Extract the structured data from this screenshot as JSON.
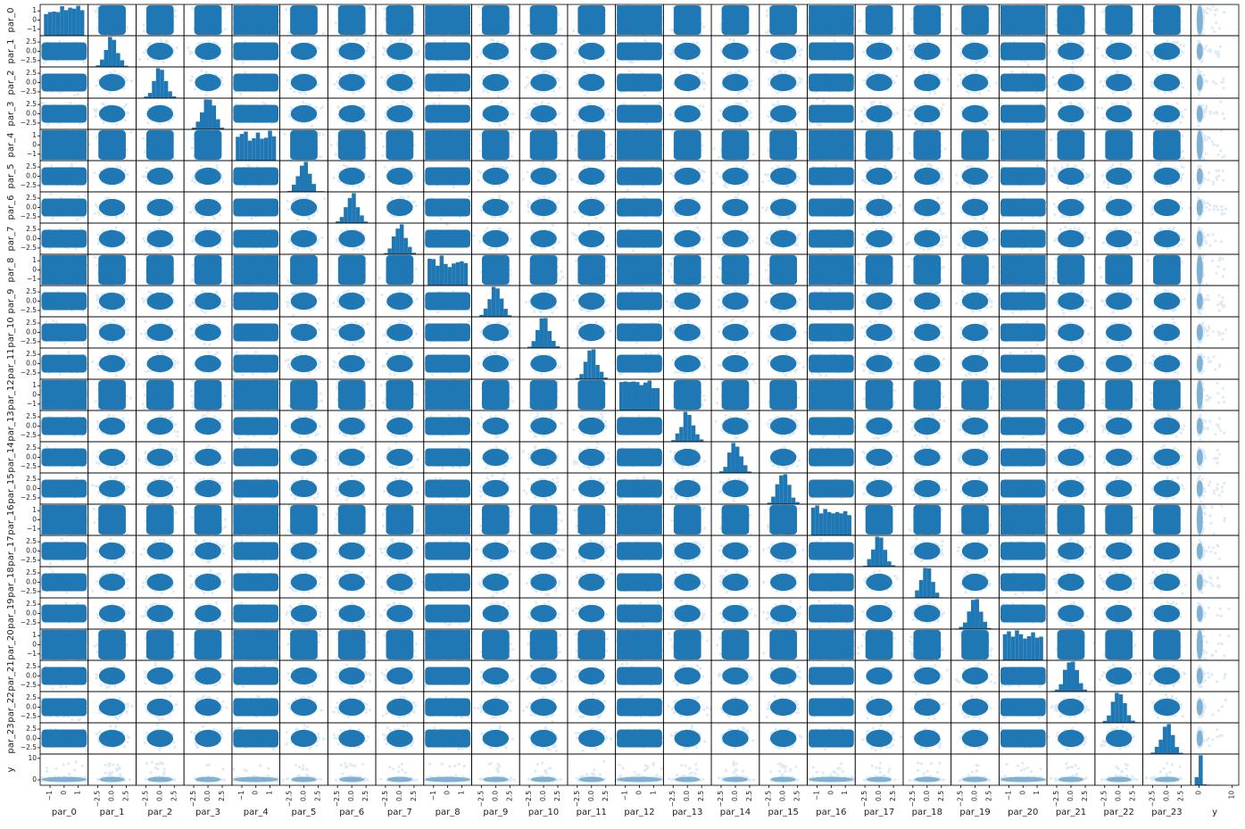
{
  "chart_data": {
    "type": "scatter_matrix",
    "variables": [
      "par_0",
      "par_1",
      "par_2",
      "par_3",
      "par_4",
      "par_5",
      "par_6",
      "par_7",
      "par_8",
      "par_9",
      "par_10",
      "par_11",
      "par_12",
      "par_13",
      "par_14",
      "par_15",
      "par_16",
      "par_17",
      "par_18",
      "par_19",
      "par_20",
      "par_21",
      "par_22",
      "par_23",
      "y"
    ],
    "uniform_variables": [
      "par_0",
      "par_4",
      "par_8",
      "par_12",
      "par_16",
      "par_20"
    ],
    "normal_variables": [
      "par_1",
      "par_2",
      "par_3",
      "par_5",
      "par_6",
      "par_7",
      "par_9",
      "par_10",
      "par_11",
      "par_13",
      "par_14",
      "par_15",
      "par_17",
      "par_18",
      "par_19",
      "par_21",
      "par_22",
      "par_23"
    ],
    "axis_ranges": {
      "uniform": [
        -1.7,
        1.7
      ],
      "normal": [
        -4.2,
        4.2
      ],
      "y": [
        -2.5,
        12
      ]
    },
    "tick_labels": {
      "uniform_x": [
        "−1",
        "0",
        "1"
      ],
      "uniform_y": [
        "1",
        "0",
        "−1"
      ],
      "normal_x": [
        "−2.5",
        "0.0",
        "2.5"
      ],
      "normal_y": [
        "2.5",
        "0.0",
        "−2.5"
      ],
      "y_x": [
        "0",
        "10"
      ],
      "y_y": [
        "10",
        "0"
      ]
    },
    "tick_values": {
      "uniform": [
        -1,
        0,
        1
      ],
      "normal": [
        -2.5,
        0.0,
        2.5
      ],
      "y": [
        0,
        10
      ]
    },
    "diagonal": "histogram",
    "color": "#1f77b4",
    "marker_alpha": 0.15,
    "grid": false
  }
}
